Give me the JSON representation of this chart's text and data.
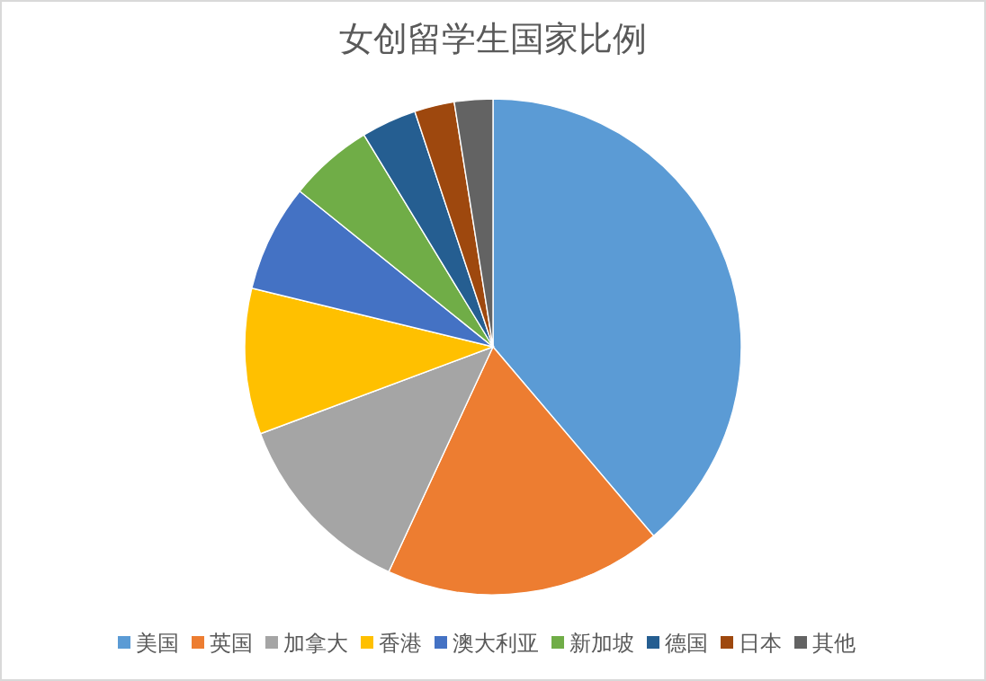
{
  "chart_data": {
    "type": "pie",
    "title": "女创留学生国家比例",
    "categories": [
      "美国",
      "英国",
      "加拿大",
      "香港",
      "澳大利亚",
      "新加坡",
      "德国",
      "日本",
      "其他"
    ],
    "values": [
      38.8,
      18.1,
      12.4,
      9.5,
      7.0,
      5.5,
      3.6,
      2.6,
      2.5
    ],
    "colors": [
      "#5b9bd5",
      "#ed7d31",
      "#a5a5a5",
      "#ffc000",
      "#4472c4",
      "#70ad47",
      "#255e91",
      "#9e480e",
      "#636363"
    ],
    "legend": "bottom"
  }
}
